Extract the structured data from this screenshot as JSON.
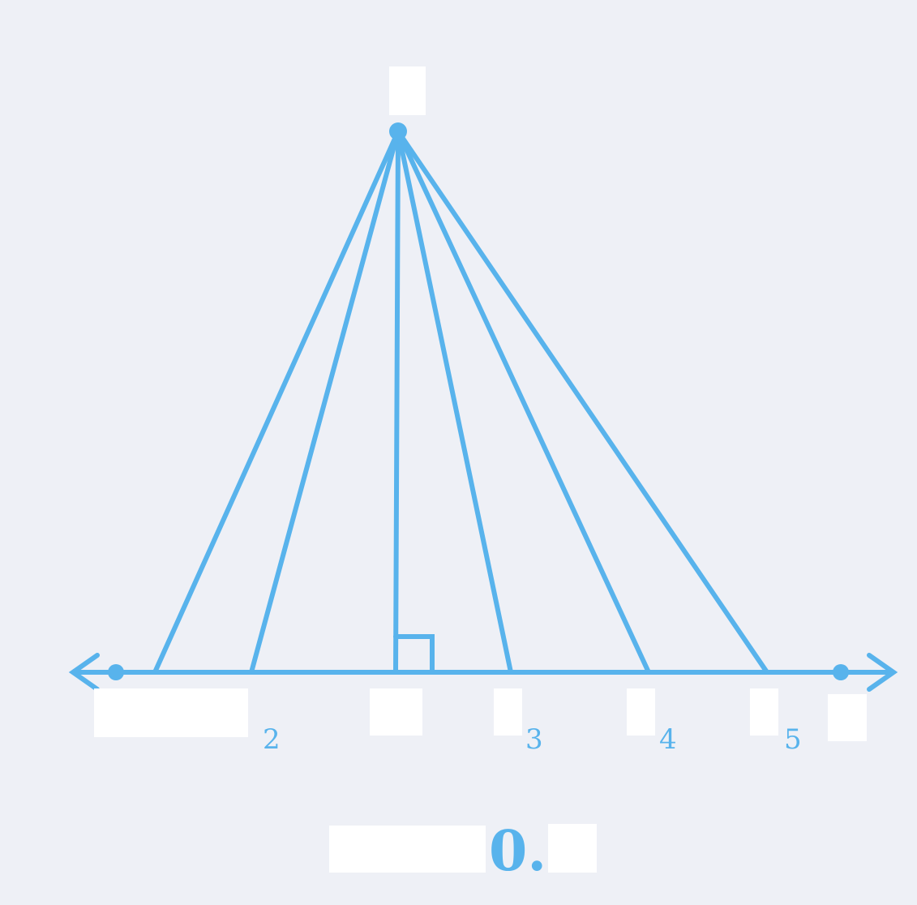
{
  "figure": {
    "subscripts": [
      "2",
      "3",
      "4",
      "5"
    ],
    "caption": "0."
  },
  "colors": {
    "background": "#eef0f6",
    "line": "#58b3ec",
    "mask": "#ffffff"
  }
}
